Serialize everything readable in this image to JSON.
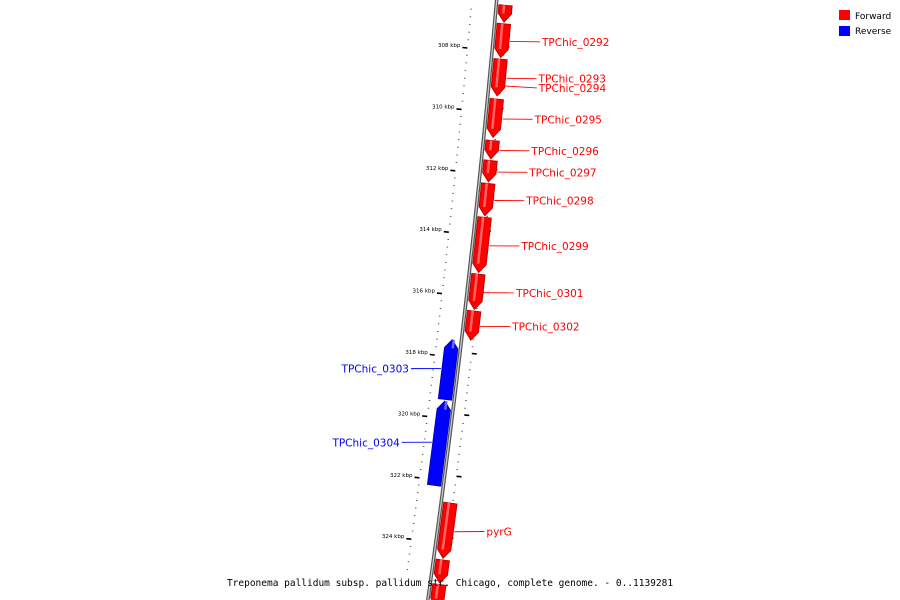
{
  "caption": "Treponema pallidum subsp. pallidum str. Chicago, complete genome. - 0..1139281",
  "legend": [
    {
      "label": "Forward",
      "color": "#ff0000"
    },
    {
      "label": "Reverse",
      "color": "#0000ff"
    }
  ],
  "colors": {
    "forward": "#ff0000",
    "reverse": "#0000ff",
    "backbone": "#888888"
  },
  "ticks": [
    {
      "label": "308 kbp",
      "kbp": 308
    },
    {
      "label": "310 kbp",
      "kbp": 310
    },
    {
      "label": "312 kbp",
      "kbp": 312
    },
    {
      "label": "314 kbp",
      "kbp": 314
    },
    {
      "label": "316 kbp",
      "kbp": 316
    },
    {
      "label": "318 kbp",
      "kbp": 318
    },
    {
      "label": "320 kbp",
      "kbp": 320
    },
    {
      "label": "322 kbp",
      "kbp": 322
    },
    {
      "label": "324 kbp",
      "kbp": 324
    }
  ],
  "genes": [
    {
      "label": "",
      "strand": "forward",
      "start_kbp": 306.6,
      "end_kbp": 307.15
    },
    {
      "label": "TPChic_0292",
      "strand": "forward",
      "start_kbp": 307.2,
      "end_kbp": 308.3
    },
    {
      "label": "TPChic_0293",
      "strand": "forward",
      "start_kbp": 308.35,
      "end_kbp": 309.55
    },
    {
      "label": "TPChic_0294",
      "strand": "forward",
      "start_kbp": 308.55,
      "end_kbp": 309.2,
      "hidden": true
    },
    {
      "label": "TPChic_0295",
      "strand": "forward",
      "start_kbp": 309.65,
      "end_kbp": 310.9
    },
    {
      "label": "TPChic_0296",
      "strand": "forward",
      "start_kbp": 311.0,
      "end_kbp": 311.6
    },
    {
      "label": "TPChic_0297",
      "strand": "forward",
      "start_kbp": 311.65,
      "end_kbp": 312.35
    },
    {
      "label": "TPChic_0298",
      "strand": "forward",
      "start_kbp": 312.4,
      "end_kbp": 313.45
    },
    {
      "label": "TPChic_0299",
      "strand": "forward",
      "start_kbp": 313.5,
      "end_kbp": 315.3
    },
    {
      "label": "TPChic_0301",
      "strand": "forward",
      "start_kbp": 315.35,
      "end_kbp": 316.5
    },
    {
      "label": "TPChic_0302",
      "strand": "forward",
      "start_kbp": 316.55,
      "end_kbp": 317.5
    },
    {
      "label": "TPChic_0303",
      "strand": "reverse",
      "start_kbp": 317.55,
      "end_kbp": 319.5
    },
    {
      "label": "TPChic_0304",
      "strand": "reverse",
      "start_kbp": 319.55,
      "end_kbp": 322.3
    },
    {
      "label": "pyrG",
      "strand": "forward",
      "start_kbp": 322.8,
      "end_kbp": 324.6
    },
    {
      "label": "",
      "strand": "forward",
      "start_kbp": 324.65,
      "end_kbp": 325.4
    },
    {
      "label": "",
      "strand": "forward",
      "start_kbp": 325.45,
      "end_kbp": 326.2
    }
  ]
}
